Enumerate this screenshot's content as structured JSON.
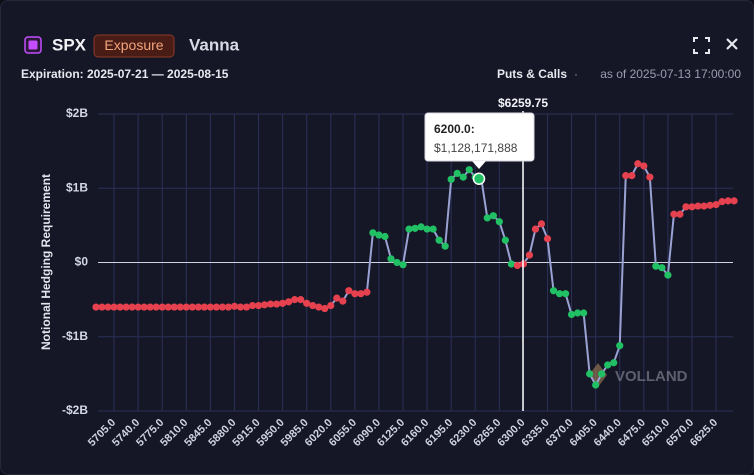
{
  "header": {
    "symbol": "SPX",
    "badge": "Exposure",
    "metric": "Vanna",
    "expiration": "Expiration: 2025-07-21 — 2025-08-15",
    "filter": "Puts & Calls",
    "separator": "·",
    "as_of": "as of 2025-07-13 17:00:00"
  },
  "chart_data": {
    "type": "line",
    "y_label": "Notional Hedging Requirement",
    "categories": [
      null,
      null,
      null,
      "5705.0",
      null,
      null,
      null,
      "5740.0",
      null,
      null,
      null,
      "5775.0",
      null,
      null,
      null,
      "5810.0",
      null,
      null,
      null,
      "5845.0",
      null,
      null,
      null,
      "5880.0",
      null,
      null,
      null,
      "5915.0",
      null,
      null,
      null,
      "5950.0",
      null,
      null,
      null,
      "5985.0",
      null,
      null,
      null,
      "6020.0",
      null,
      null,
      null,
      "6055.0",
      null,
      null,
      null,
      "6090.0",
      null,
      null,
      null,
      "6125.0",
      null,
      null,
      null,
      "6160.0",
      null,
      null,
      null,
      "6195.0",
      null,
      null,
      null,
      "6230.0",
      null,
      null,
      null,
      "6265.0",
      null,
      null,
      null,
      "6300.0",
      null,
      null,
      null,
      "6335.0",
      null,
      null,
      null,
      "6370.0",
      null,
      null,
      null,
      "6405.0",
      null,
      null,
      null,
      "6440.0",
      null,
      null,
      null,
      "6475.0",
      null,
      null,
      null,
      "6510.0",
      null,
      null,
      null,
      "6570.0",
      null,
      null,
      null,
      "6625.0",
      null,
      null,
      null
    ],
    "series": [
      {
        "color": "#9aa2d4",
        "values": [
          -0.6,
          -0.6,
          -0.6,
          -0.6,
          -0.6,
          -0.6,
          -0.6,
          -0.6,
          -0.6,
          -0.6,
          -0.6,
          -0.6,
          -0.6,
          -0.6,
          -0.6,
          -0.6,
          -0.6,
          -0.6,
          -0.6,
          -0.6,
          -0.6,
          -0.6,
          -0.6,
          -0.59,
          -0.6,
          -0.6,
          -0.58,
          -0.58,
          -0.57,
          -0.56,
          -0.56,
          -0.55,
          -0.53,
          -0.5,
          -0.5,
          -0.55,
          -0.58,
          -0.6,
          -0.62,
          -0.58,
          -0.48,
          -0.52,
          -0.38,
          -0.42,
          -0.42,
          -0.4,
          0.4,
          0.37,
          0.35,
          0.05,
          0,
          -0.03,
          0.45,
          0.46,
          0.48,
          0.45,
          0.45,
          0.3,
          0.22,
          1.12,
          1.2,
          1.15,
          1.25,
          1.15,
          1.13,
          0.6,
          0.63,
          0.55,
          0.3,
          -0.02,
          -0.04,
          -0.02,
          0.1,
          0.45,
          0.52,
          0.32,
          -0.38,
          -0.42,
          -0.42,
          -0.7,
          -0.68,
          -0.68,
          -1.5,
          -1.65,
          -1.5,
          -1.38,
          -1.35,
          -1.12,
          1.17,
          1.17,
          1.33,
          1.3,
          1.15,
          -0.05,
          -0.07,
          -0.17,
          0.65,
          0.65,
          0.75,
          0.75,
          0.76,
          0.76,
          0.77,
          0.78,
          0.82,
          0.83,
          0.83
        ],
        "point_colors": [
          "#e5414e",
          "#e5414e",
          "#e5414e",
          "#e5414e",
          "#e5414e",
          "#e5414e",
          "#e5414e",
          "#e5414e",
          "#e5414e",
          "#e5414e",
          "#e5414e",
          "#e5414e",
          "#e5414e",
          "#e5414e",
          "#e5414e",
          "#e5414e",
          "#e5414e",
          "#e5414e",
          "#e5414e",
          "#e5414e",
          "#e5414e",
          "#e5414e",
          "#e5414e",
          "#e5414e",
          "#e5414e",
          "#e5414e",
          "#e5414e",
          "#e5414e",
          "#e5414e",
          "#e5414e",
          "#e5414e",
          "#e5414e",
          "#e5414e",
          "#e5414e",
          "#e5414e",
          "#e5414e",
          "#e5414e",
          "#e5414e",
          "#e5414e",
          "#e5414e",
          "#e5414e",
          "#e5414e",
          "#e5414e",
          "#e5414e",
          "#e5414e",
          "#e5414e",
          "#21c064",
          "#21c064",
          "#21c064",
          "#21c064",
          "#21c064",
          "#21c064",
          "#21c064",
          "#21c064",
          "#21c064",
          "#21c064",
          "#21c064",
          "#21c064",
          "#21c064",
          "#21c064",
          "#21c064",
          "#21c064",
          "#21c064",
          "#21c064",
          "#21c064",
          "#21c064",
          "#21c064",
          "#21c064",
          "#21c064",
          "#21c064",
          "#e5414e",
          "#e5414e",
          "#e5414e",
          "#e5414e",
          "#e5414e",
          "#e5414e",
          "#21c064",
          "#21c064",
          "#21c064",
          "#21c064",
          "#21c064",
          "#21c064",
          "#21c064",
          "#21c064",
          "#21c064",
          "#21c064",
          "#21c064",
          "#21c064",
          "#e5414e",
          "#e5414e",
          "#e5414e",
          "#e5414e",
          "#e5414e",
          "#21c064",
          "#21c064",
          "#21c064",
          "#e5414e",
          "#e5414e",
          "#e5414e",
          "#e5414e",
          "#e5414e",
          "#e5414e",
          "#e5414e",
          "#e5414e",
          "#e5414e",
          "#e5414e",
          "#e5414e"
        ]
      }
    ],
    "ylim": [
      -2,
      2
    ],
    "yticks": [
      {
        "value": -2,
        "label": "-$2B"
      },
      {
        "value": -1,
        "label": "-$1B"
      },
      {
        "value": 0,
        "label": "$0"
      },
      {
        "value": 1,
        "label": "$1B"
      },
      {
        "value": 2,
        "label": "$2B"
      }
    ],
    "grid": true,
    "grid_color": "#2a3158",
    "spot_label": "$6259.75",
    "tooltip": {
      "title": "6200.0:",
      "label": "$1,128,171,888",
      "value": 1.128171888,
      "color": "#21c064"
    },
    "watermark": "VOLLAND"
  }
}
